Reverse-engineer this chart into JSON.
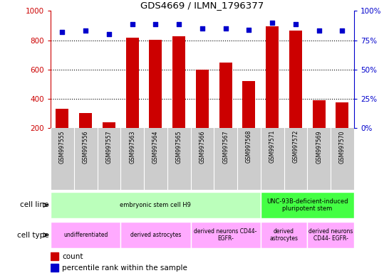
{
  "title": "GDS4669 / ILMN_1796377",
  "samples": [
    "GSM997555",
    "GSM997556",
    "GSM997557",
    "GSM997563",
    "GSM997564",
    "GSM997565",
    "GSM997566",
    "GSM997567",
    "GSM997568",
    "GSM997571",
    "GSM997572",
    "GSM997569",
    "GSM997570"
  ],
  "counts": [
    335,
    305,
    242,
    820,
    803,
    825,
    600,
    648,
    520,
    895,
    868,
    392,
    378
  ],
  "percentiles": [
    82,
    83,
    80,
    89,
    89,
    89,
    85,
    85,
    84,
    90,
    89,
    83,
    83
  ],
  "ylim_left": [
    200,
    1000
  ],
  "ylim_right": [
    0,
    100
  ],
  "yticks_left": [
    200,
    400,
    600,
    800,
    1000
  ],
  "yticks_right": [
    0,
    25,
    50,
    75,
    100
  ],
  "bar_color": "#cc0000",
  "dot_color": "#0000cc",
  "cell_line_groups": [
    {
      "label": "embryonic stem cell H9",
      "start": 0,
      "end": 9,
      "color": "#bbffbb"
    },
    {
      "label": "UNC-93B-deficient-induced\npluripotent stem",
      "start": 9,
      "end": 13,
      "color": "#44ff44"
    }
  ],
  "cell_type_groups": [
    {
      "label": "undifferentiated",
      "start": 0,
      "end": 3,
      "color": "#ffaaff"
    },
    {
      "label": "derived astrocytes",
      "start": 3,
      "end": 6,
      "color": "#ffaaff"
    },
    {
      "label": "derived neurons CD44-\nEGFR-",
      "start": 6,
      "end": 9,
      "color": "#ffaaff"
    },
    {
      "label": "derived\nastrocytes",
      "start": 9,
      "end": 11,
      "color": "#ffaaff"
    },
    {
      "label": "derived neurons\nCD44- EGFR-",
      "start": 11,
      "end": 13,
      "color": "#ffaaff"
    }
  ],
  "row_label_cell_line": "cell line",
  "row_label_cell_type": "cell type",
  "legend_count_label": "count",
  "legend_pct_label": "percentile rank within the sample",
  "background_color": "#ffffff",
  "tick_area_color": "#cccccc",
  "grid_yticks": [
    400,
    600,
    800
  ]
}
